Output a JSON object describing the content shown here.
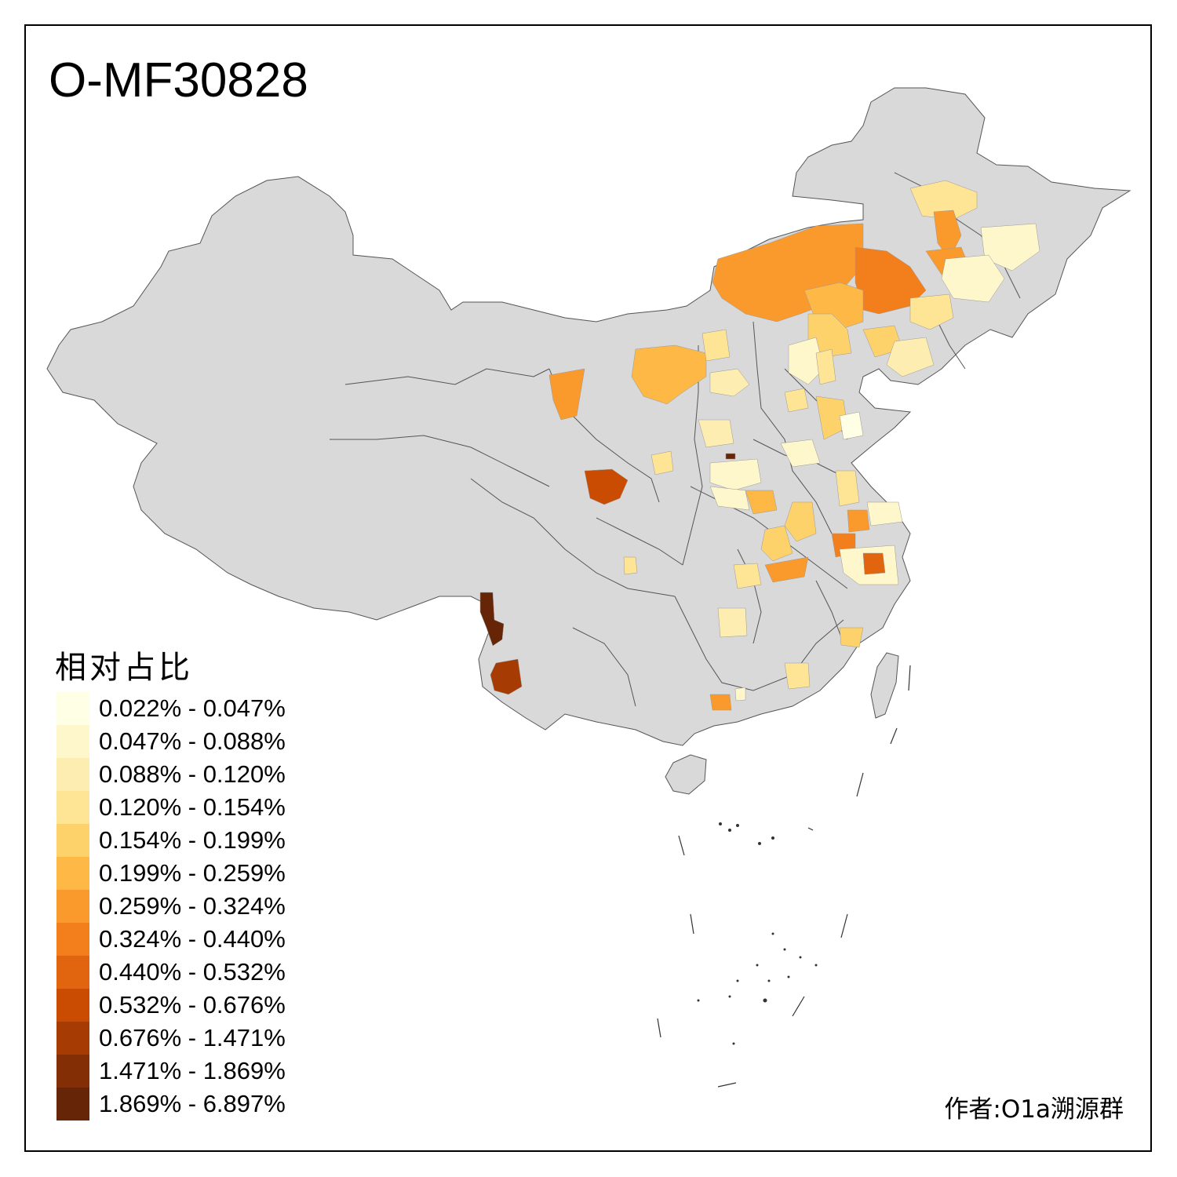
{
  "title": "O-MF30828",
  "legend": {
    "title": "相对占比",
    "items": [
      {
        "label": "0.022% - 0.047%",
        "color": "#FFFFE5"
      },
      {
        "label": "0.047% - 0.088%",
        "color": "#FFF7CC"
      },
      {
        "label": "0.088% - 0.120%",
        "color": "#FEEDB0"
      },
      {
        "label": "0.120% - 0.154%",
        "color": "#FEE495"
      },
      {
        "label": "0.154% - 0.199%",
        "color": "#FED26B"
      },
      {
        "label": "0.199% - 0.259%",
        "color": "#FEB845"
      },
      {
        "label": "0.259% - 0.324%",
        "color": "#FB9A2C"
      },
      {
        "label": "0.324% - 0.440%",
        "color": "#F27E1C"
      },
      {
        "label": "0.440% - 0.532%",
        "color": "#E1640E"
      },
      {
        "label": "0.532% - 0.676%",
        "color": "#C94C02"
      },
      {
        "label": "0.676% - 1.471%",
        "color": "#A63B03"
      },
      {
        "label": "1.471% - 1.869%",
        "color": "#832E05"
      },
      {
        "label": "1.869% - 6.897%",
        "color": "#662506"
      }
    ]
  },
  "author": "作者:O1a溯源群",
  "colors": {
    "land": "#D9D9D9",
    "border": "#555555",
    "sea": "#FFFFFF"
  }
}
